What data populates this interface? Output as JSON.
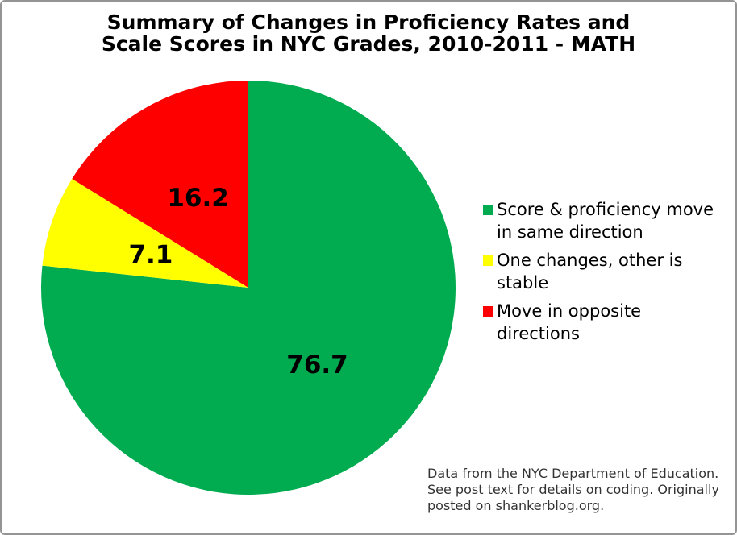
{
  "header": {
    "title_lines": [
      "Summary of Changes in Proficiency Rates and",
      "Scale Scores in NYC Grades, 2010-2011 - MATH"
    ]
  },
  "chart_data": {
    "type": "pie",
    "title": "Summary of Changes in Proficiency Rates and Scale Scores in NYC Grades, 2010-2011 - MATH",
    "start_angle_deg": 0,
    "direction": "clockwise",
    "legend_position": "right",
    "data_label_format": "one-decimal, at mid-radius",
    "slices": [
      {
        "label": "Score & proficiency move in same direction",
        "value": 76.7,
        "color": "#00AC4F"
      },
      {
        "label": "One changes, other is stable",
        "value": 7.1,
        "color": "#FFFF00"
      },
      {
        "label": "Move in opposite directions",
        "value": 16.2,
        "color": "#FF0000"
      }
    ]
  },
  "legend": {
    "items": [
      {
        "lines": [
          "Score & proficiency move",
          "in same direction"
        ],
        "color": "#00AC4F"
      },
      {
        "lines": [
          "One changes, other is",
          "stable"
        ],
        "color": "#FFFF00"
      },
      {
        "lines": [
          "Move in opposite",
          "directions"
        ],
        "color": "#FF0000"
      }
    ]
  },
  "footer": {
    "lines": [
      "Data from the NYC Department of Education.",
      "See post text for details on coding. Originally",
      "posted on shankerblog.org."
    ]
  },
  "colors": {
    "border": "#949494",
    "title_text": "#000000",
    "footer_text": "#333333",
    "data_label_text": "#000000",
    "background": "#FFFFFF"
  }
}
